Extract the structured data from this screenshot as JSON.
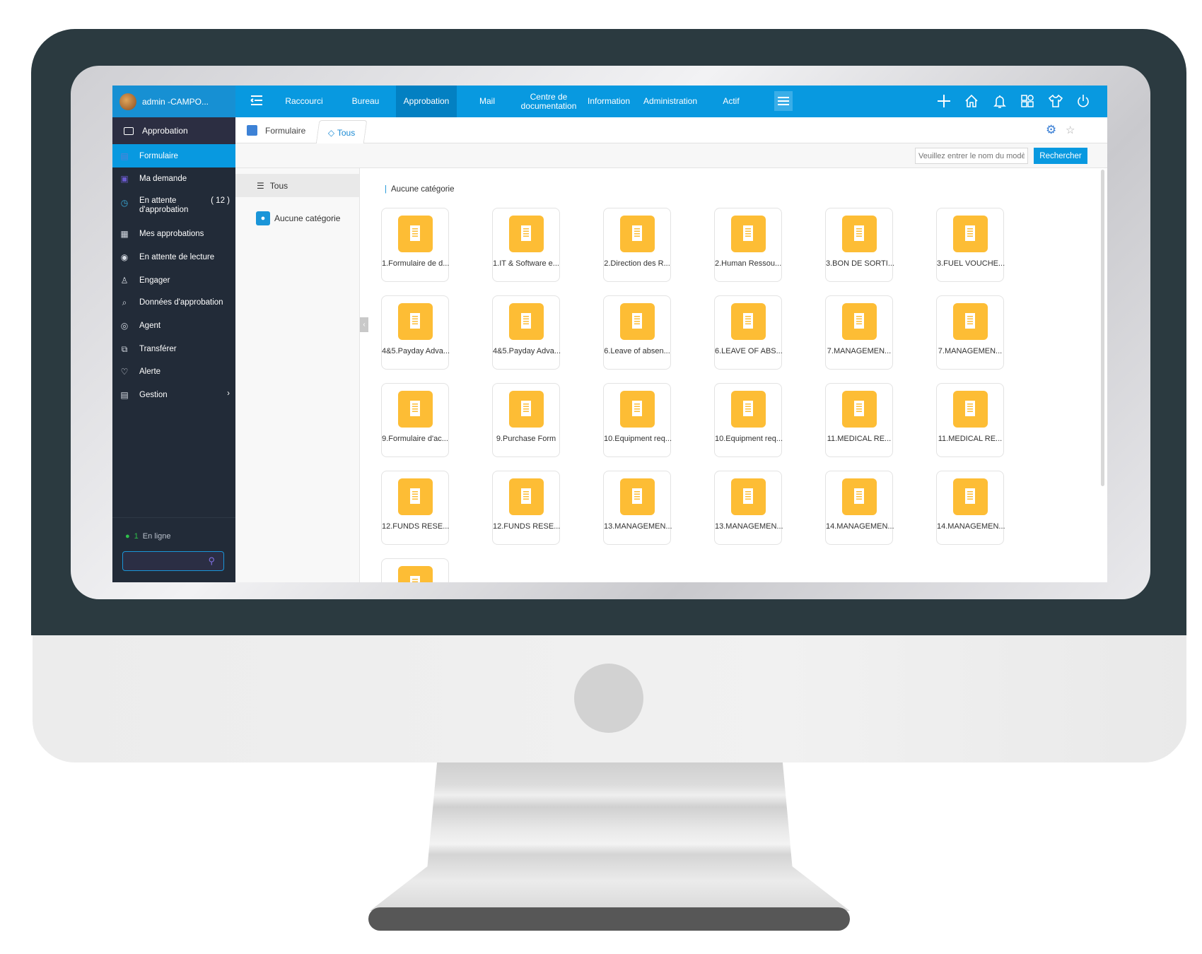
{
  "header": {
    "user": "admin -CAMPO...",
    "nav": [
      "Raccourci",
      "Bureau",
      "Approbation",
      "Mail",
      "Centre de documentation",
      "Information",
      "Administration",
      "Actif"
    ],
    "active_nav": "Approbation",
    "icons": [
      "plus-icon",
      "home-icon",
      "bell-icon",
      "apps-icon",
      "shirt-icon",
      "power-icon"
    ]
  },
  "sidebar": {
    "section": "Approbation",
    "items": [
      {
        "label": "Formulaire",
        "icon": "form-icon"
      },
      {
        "label": "Ma demande",
        "icon": "request-icon"
      },
      {
        "label": "En attente d'approbation",
        "icon": "clock-user-icon",
        "badge": "( 12 )"
      },
      {
        "label": "Mes approbations",
        "icon": "approvals-icon"
      },
      {
        "label": "En attente de lecture",
        "icon": "eye-icon"
      },
      {
        "label": "Engager",
        "icon": "user-icon"
      },
      {
        "label": "Données d'approbation",
        "icon": "search-data-icon"
      },
      {
        "label": "Agent",
        "icon": "agent-icon"
      },
      {
        "label": "Transférer",
        "icon": "transfer-icon"
      },
      {
        "label": "Alerte",
        "icon": "heart-icon"
      },
      {
        "label": "Gestion",
        "icon": "manage-icon"
      }
    ],
    "online_count": "1",
    "online_label": "En ligne"
  },
  "tabs": {
    "breadcrumb": "Formulaire",
    "active_tab": "Tous"
  },
  "toolbar": {
    "search_placeholder": "Veuillez entrer le nom du modèle",
    "search_button": "Rechercher"
  },
  "categories": {
    "all": "Tous",
    "items": [
      "Aucune catégorie"
    ]
  },
  "content": {
    "group_title": "Aucune catégorie",
    "forms": [
      "1.Formulaire de d...",
      "1.IT & Software e...",
      "2.Direction des R...",
      "2.Human Ressou...",
      "3.BON DE SORTI...",
      "3.FUEL VOUCHE...",
      "4&5.Payday Adva...",
      "4&5.Payday Adva...",
      "6.Leave of absen...",
      "6.LEAVE OF ABS...",
      "7.MANAGEMEN...",
      "7.MANAGEMEN...",
      "9.Formulaire d'ac...",
      "9.Purchase Form",
      "10.Equipment req...",
      "10.Equipment req...",
      "11.MEDICAL RE...",
      "11.MEDICAL RE...",
      "12.FUNDS RESE...",
      "12.FUNDS RESE...",
      "13.MANAGEMEN...",
      "13.MANAGEMEN...",
      "14.MANAGEMEN...",
      "14.MANAGEMEN...",
      ""
    ]
  },
  "colors": {
    "accent": "#0899e0",
    "sidebar": "#222b38",
    "form_icon": "#fdbd35"
  }
}
